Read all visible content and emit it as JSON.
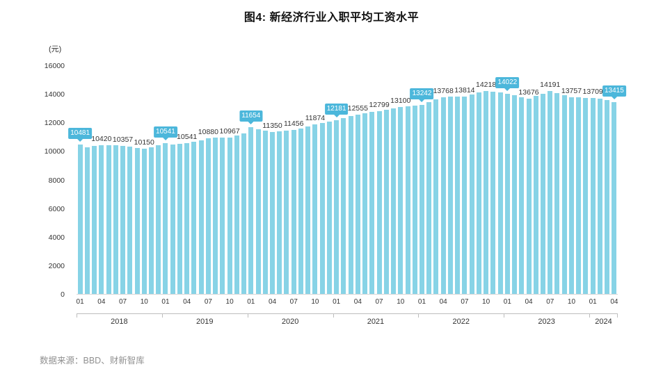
{
  "title": "图4: 新经济行业入职平均工资水平",
  "footer": {
    "source": "数据来源：BBD、财新智库"
  },
  "chart_data": {
    "type": "bar",
    "title": "图4: 新经济行业入职平均工资水平",
    "y_unit": "(元)",
    "ylim": [
      0,
      16000
    ],
    "y_ticks": [
      0,
      2000,
      4000,
      6000,
      8000,
      10000,
      12000,
      14000,
      16000
    ],
    "x_month_ticks": [
      "01",
      "04",
      "07",
      "10"
    ],
    "bar_color": "#87d3e6",
    "highlight_color": "#4cb7db",
    "grid": false,
    "legend": "none",
    "years": [
      {
        "year": "2018",
        "values": [
          10481,
          10280,
          10350,
          10420,
          10400,
          10390,
          10357,
          10310,
          10230,
          10150,
          10260,
          10390
        ]
      },
      {
        "year": "2019",
        "values": [
          10541,
          10470,
          10500,
          10541,
          10640,
          10760,
          10880,
          10920,
          10950,
          10967,
          11080,
          11250
        ]
      },
      {
        "year": "2020",
        "values": [
          11654,
          11540,
          11430,
          11350,
          11380,
          11420,
          11456,
          11580,
          11720,
          11874,
          11980,
          12080
        ]
      },
      {
        "year": "2021",
        "values": [
          12181,
          12320,
          12450,
          12555,
          12640,
          12720,
          12799,
          12900,
          13000,
          13100,
          13150,
          13200
        ]
      },
      {
        "year": "2022",
        "values": [
          13242,
          13430,
          13600,
          13768,
          13790,
          13800,
          13814,
          13950,
          14090,
          14218,
          14150,
          14080
        ]
      },
      {
        "year": "2023",
        "values": [
          14022,
          13900,
          13780,
          13676,
          13850,
          14030,
          14191,
          14040,
          13890,
          13757,
          13740,
          13725
        ]
      },
      {
        "year": "2024",
        "values": [
          13709,
          13680,
          13560,
          13415
        ]
      }
    ],
    "labels": [
      {
        "year": "2018",
        "month": 1,
        "text": "10481",
        "highlight": true
      },
      {
        "year": "2018",
        "month": 4,
        "text": "10420",
        "highlight": false
      },
      {
        "year": "2018",
        "month": 7,
        "text": "10357",
        "highlight": false
      },
      {
        "year": "2018",
        "month": 10,
        "text": "10150",
        "highlight": false
      },
      {
        "year": "2019",
        "month": 1,
        "text": "10541",
        "highlight": true
      },
      {
        "year": "2019",
        "month": 4,
        "text": "10541",
        "highlight": false
      },
      {
        "year": "2019",
        "month": 7,
        "text": "10880",
        "highlight": false
      },
      {
        "year": "2019",
        "month": 10,
        "text": "10967",
        "highlight": false
      },
      {
        "year": "2020",
        "month": 1,
        "text": "11654",
        "highlight": true
      },
      {
        "year": "2020",
        "month": 4,
        "text": "11350",
        "highlight": false
      },
      {
        "year": "2020",
        "month": 7,
        "text": "11456",
        "highlight": false
      },
      {
        "year": "2020",
        "month": 10,
        "text": "11874",
        "highlight": false
      },
      {
        "year": "2021",
        "month": 1,
        "text": "12181",
        "highlight": true
      },
      {
        "year": "2021",
        "month": 4,
        "text": "12555",
        "highlight": false
      },
      {
        "year": "2021",
        "month": 7,
        "text": "12799",
        "highlight": false
      },
      {
        "year": "2021",
        "month": 10,
        "text": "13100",
        "highlight": false
      },
      {
        "year": "2022",
        "month": 1,
        "text": "13242",
        "highlight": true
      },
      {
        "year": "2022",
        "month": 4,
        "text": "13768",
        "highlight": false
      },
      {
        "year": "2022",
        "month": 7,
        "text": "13814",
        "highlight": false
      },
      {
        "year": "2022",
        "month": 10,
        "text": "14218",
        "highlight": false
      },
      {
        "year": "2023",
        "month": 1,
        "text": "14022",
        "highlight": true
      },
      {
        "year": "2023",
        "month": 4,
        "text": "13676",
        "highlight": false
      },
      {
        "year": "2023",
        "month": 7,
        "text": "14191",
        "highlight": false
      },
      {
        "year": "2023",
        "month": 10,
        "text": "13757",
        "highlight": false
      },
      {
        "year": "2024",
        "month": 1,
        "text": "13709",
        "highlight": false
      },
      {
        "year": "2024",
        "month": 4,
        "text": "13415",
        "highlight": true
      }
    ]
  }
}
